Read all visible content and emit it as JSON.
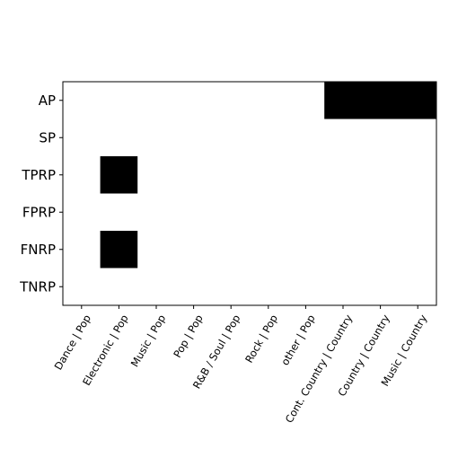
{
  "chart_data": {
    "type": "heatmap",
    "title": "",
    "xlabel": "",
    "ylabel": "",
    "x_categories": [
      "Dance | Pop",
      "Electronic | Pop",
      "Music | Pop",
      "Pop | Pop",
      "R&B / Soul | Pop",
      "Rock | Pop",
      "other | Pop",
      "Cont. Country | Country",
      "Country | Country",
      "Music | Country"
    ],
    "y_categories": [
      "AP",
      "SP",
      "TPRP",
      "FPRP",
      "FNRP",
      "TNRP"
    ],
    "values": [
      [
        0,
        0,
        0,
        0,
        0,
        0,
        0,
        1,
        1,
        1
      ],
      [
        0,
        0,
        0,
        0,
        0,
        0,
        0,
        0,
        0,
        0
      ],
      [
        0,
        1,
        0,
        0,
        0,
        0,
        0,
        0,
        0,
        0
      ],
      [
        0,
        0,
        0,
        0,
        0,
        0,
        0,
        0,
        0,
        0
      ],
      [
        0,
        1,
        0,
        0,
        0,
        0,
        0,
        0,
        0,
        0
      ],
      [
        0,
        0,
        0,
        0,
        0,
        0,
        0,
        0,
        0,
        0
      ]
    ],
    "colors": {
      "zero": "#ffffff",
      "one": "#000000",
      "axis": "#000000"
    },
    "grid": false,
    "legend": "none"
  }
}
